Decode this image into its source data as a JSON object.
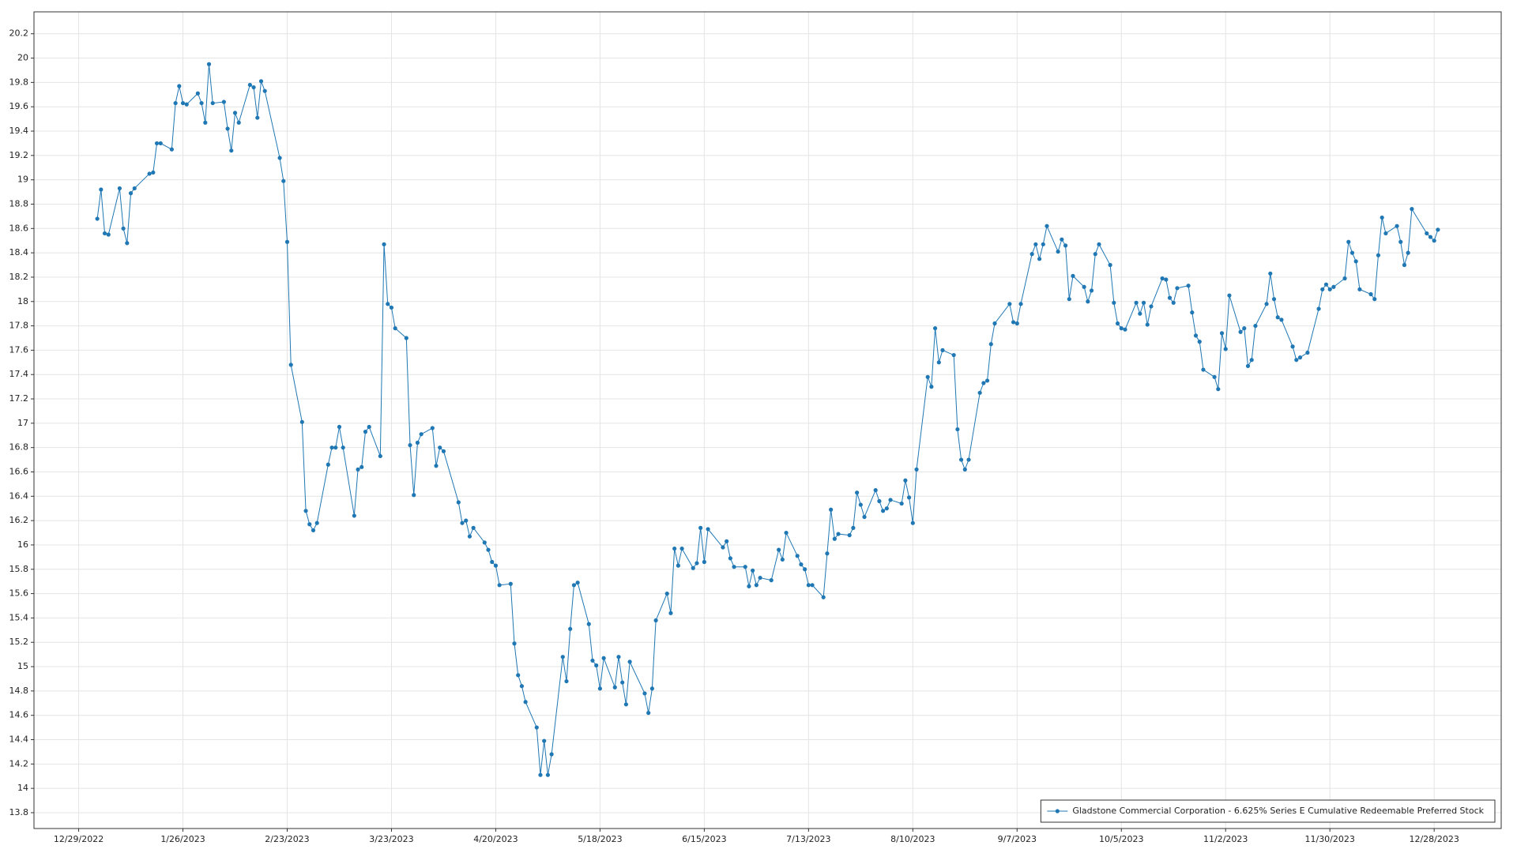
{
  "chart_data": {
    "type": "line",
    "x": [
      "1/3/2023",
      "1/4/2023",
      "1/5/2023",
      "1/6/2023",
      "1/9/2023",
      "1/10/2023",
      "1/11/2023",
      "1/12/2023",
      "1/13/2023",
      "1/17/2023",
      "1/18/2023",
      "1/19/2023",
      "1/20/2023",
      "1/23/2023",
      "1/24/2023",
      "1/25/2023",
      "1/26/2023",
      "1/27/2023",
      "1/30/2023",
      "1/31/2023",
      "2/1/2023",
      "2/2/2023",
      "2/3/2023",
      "2/6/2023",
      "2/7/2023",
      "2/8/2023",
      "2/9/2023",
      "2/10/2023",
      "2/13/2023",
      "2/14/2023",
      "2/15/2023",
      "2/16/2023",
      "2/17/2023",
      "2/21/2023",
      "2/22/2023",
      "2/23/2023",
      "2/24/2023",
      "2/27/2023",
      "2/28/2023",
      "3/1/2023",
      "3/2/2023",
      "3/3/2023",
      "3/6/2023",
      "3/7/2023",
      "3/8/2023",
      "3/9/2023",
      "3/10/2023",
      "3/13/2023",
      "3/14/2023",
      "3/15/2023",
      "3/16/2023",
      "3/17/2023",
      "3/20/2023",
      "3/21/2023",
      "3/22/2023",
      "3/23/2023",
      "3/24/2023",
      "3/27/2023",
      "3/28/2023",
      "3/29/2023",
      "3/30/2023",
      "3/31/2023",
      "4/3/2023",
      "4/4/2023",
      "4/5/2023",
      "4/6/2023",
      "4/10/2023",
      "4/11/2023",
      "4/12/2023",
      "4/13/2023",
      "4/14/2023",
      "4/17/2023",
      "4/18/2023",
      "4/19/2023",
      "4/20/2023",
      "4/21/2023",
      "4/24/2023",
      "4/25/2023",
      "4/26/2023",
      "4/27/2023",
      "4/28/2023",
      "5/1/2023",
      "5/2/2023",
      "5/3/2023",
      "5/4/2023",
      "5/5/2023",
      "5/8/2023",
      "5/9/2023",
      "5/10/2023",
      "5/11/2023",
      "5/12/2023",
      "5/15/2023",
      "5/16/2023",
      "5/17/2023",
      "5/18/2023",
      "5/19/2023",
      "5/22/2023",
      "5/23/2023",
      "5/24/2023",
      "5/25/2023",
      "5/26/2023",
      "5/30/2023",
      "5/31/2023",
      "6/1/2023",
      "6/2/2023",
      "6/5/2023",
      "6/6/2023",
      "6/7/2023",
      "6/8/2023",
      "6/9/2023",
      "6/12/2023",
      "6/13/2023",
      "6/14/2023",
      "6/15/2023",
      "6/16/2023",
      "6/20/2023",
      "6/21/2023",
      "6/22/2023",
      "6/23/2023",
      "6/26/2023",
      "6/27/2023",
      "6/28/2023",
      "6/29/2023",
      "6/30/2023",
      "7/3/2023",
      "7/5/2023",
      "7/6/2023",
      "7/7/2023",
      "7/10/2023",
      "7/11/2023",
      "7/12/2023",
      "7/13/2023",
      "7/14/2023",
      "7/17/2023",
      "7/18/2023",
      "7/19/2023",
      "7/20/2023",
      "7/21/2023",
      "7/24/2023",
      "7/25/2023",
      "7/26/2023",
      "7/27/2023",
      "7/28/2023",
      "7/31/2023",
      "8/1/2023",
      "8/2/2023",
      "8/3/2023",
      "8/4/2023",
      "8/7/2023",
      "8/8/2023",
      "8/9/2023",
      "8/10/2023",
      "8/11/2023",
      "8/14/2023",
      "8/15/2023",
      "8/16/2023",
      "8/17/2023",
      "8/18/2023",
      "8/21/2023",
      "8/22/2023",
      "8/23/2023",
      "8/24/2023",
      "8/25/2023",
      "8/28/2023",
      "8/29/2023",
      "8/30/2023",
      "8/31/2023",
      "9/1/2023",
      "9/5/2023",
      "9/6/2023",
      "9/7/2023",
      "9/8/2023",
      "9/11/2023",
      "9/12/2023",
      "9/13/2023",
      "9/14/2023",
      "9/15/2023",
      "9/18/2023",
      "9/19/2023",
      "9/20/2023",
      "9/21/2023",
      "9/22/2023",
      "9/25/2023",
      "9/26/2023",
      "9/27/2023",
      "9/28/2023",
      "9/29/2023",
      "10/2/2023",
      "10/3/2023",
      "10/4/2023",
      "10/5/2023",
      "10/6/2023",
      "10/9/2023",
      "10/10/2023",
      "10/11/2023",
      "10/12/2023",
      "10/13/2023",
      "10/16/2023",
      "10/17/2023",
      "10/18/2023",
      "10/19/2023",
      "10/20/2023",
      "10/23/2023",
      "10/24/2023",
      "10/25/2023",
      "10/26/2023",
      "10/27/2023",
      "10/30/2023",
      "10/31/2023",
      "11/1/2023",
      "11/2/2023",
      "11/3/2023",
      "11/6/2023",
      "11/7/2023",
      "11/8/2023",
      "11/9/2023",
      "11/10/2023",
      "11/13/2023",
      "11/14/2023",
      "11/15/2023",
      "11/16/2023",
      "11/17/2023",
      "11/20/2023",
      "11/21/2023",
      "11/22/2023",
      "11/24/2023",
      "11/27/2023",
      "11/28/2023",
      "11/29/2023",
      "11/30/2023",
      "12/1/2023",
      "12/4/2023",
      "12/5/2023",
      "12/6/2023",
      "12/7/2023",
      "12/8/2023",
      "12/11/2023",
      "12/12/2023",
      "12/13/2023",
      "12/14/2023",
      "12/15/2023",
      "12/18/2023",
      "12/19/2023",
      "12/20/2023",
      "12/21/2023",
      "12/22/2023",
      "12/26/2023",
      "12/27/2023",
      "12/28/2023",
      "12/29/2023"
    ],
    "series": [
      {
        "name": "Gladstone Commercial Corporation - 6.625% Series E Cumulative Redeemable Preferred Stock",
        "color": "#1f77b4",
        "values": [
          18.68,
          18.92,
          18.56,
          18.55,
          18.93,
          18.6,
          18.48,
          18.89,
          18.93,
          19.05,
          19.06,
          19.3,
          19.3,
          19.25,
          19.63,
          19.77,
          19.63,
          19.62,
          19.71,
          19.63,
          19.47,
          19.95,
          19.63,
          19.64,
          19.42,
          19.24,
          19.55,
          19.47,
          19.78,
          19.76,
          19.51,
          19.81,
          19.73,
          19.18,
          18.99,
          18.49,
          17.48,
          17.01,
          16.28,
          16.17,
          16.12,
          16.18,
          16.66,
          16.8,
          16.8,
          16.97,
          16.8,
          16.24,
          16.62,
          16.64,
          16.93,
          16.97,
          16.73,
          18.47,
          17.98,
          17.95,
          17.78,
          17.7,
          16.82,
          16.41,
          16.84,
          16.91,
          16.96,
          16.65,
          16.8,
          16.77,
          16.35,
          16.18,
          16.2,
          16.07,
          16.14,
          16.02,
          15.96,
          15.86,
          15.83,
          15.67,
          15.68,
          15.19,
          14.93,
          14.84,
          14.71,
          14.5,
          14.11,
          14.39,
          14.11,
          14.28,
          15.08,
          14.88,
          15.31,
          15.67,
          15.69,
          15.35,
          15.05,
          15.01,
          14.82,
          15.07,
          14.83,
          15.08,
          14.87,
          14.69,
          15.04,
          14.78,
          14.62,
          14.82,
          15.38,
          15.6,
          15.44,
          15.97,
          15.83,
          15.97,
          15.81,
          15.85,
          16.14,
          15.86,
          16.13,
          15.98,
          16.03,
          15.89,
          15.82,
          15.82,
          15.66,
          15.79,
          15.67,
          15.73,
          15.71,
          15.96,
          15.88,
          16.1,
          15.91,
          15.84,
          15.8,
          15.67,
          15.67,
          15.57,
          15.93,
          16.29,
          16.05,
          16.09,
          16.08,
          16.14,
          16.43,
          16.33,
          16.23,
          16.45,
          16.36,
          16.28,
          16.3,
          16.37,
          16.34,
          16.53,
          16.39,
          16.18,
          16.62,
          17.38,
          17.3,
          17.78,
          17.5,
          17.6,
          17.56,
          16.95,
          16.7,
          16.62,
          16.7,
          17.25,
          17.33,
          17.35,
          17.65,
          17.82,
          17.98,
          17.83,
          17.82,
          17.98,
          18.39,
          18.47,
          18.35,
          18.47,
          18.62,
          18.41,
          18.51,
          18.46,
          18.02,
          18.21,
          18.12,
          18.0,
          18.09,
          18.39,
          18.47,
          18.3,
          17.99,
          17.82,
          17.78,
          17.77,
          17.99,
          17.9,
          17.99,
          17.81,
          17.96,
          18.19,
          18.18,
          18.03,
          17.99,
          18.11,
          18.13,
          17.91,
          17.72,
          17.67,
          17.44,
          17.38,
          17.28,
          17.74,
          17.61,
          18.05,
          17.75,
          17.78,
          17.47,
          17.52,
          17.8,
          17.98,
          18.23,
          18.02,
          17.87,
          17.85,
          17.63,
          17.52,
          17.54,
          17.58,
          17.94,
          18.1,
          18.14,
          18.1,
          18.12,
          18.19,
          18.49,
          18.4,
          18.33,
          18.1,
          18.06,
          18.02,
          18.38,
          18.69,
          18.56,
          18.62,
          18.49,
          18.3,
          18.4,
          18.76,
          18.56,
          18.53,
          18.5,
          18.59
        ]
      }
    ],
    "xlim": [
      "12/17/2022",
      "1/15/2024"
    ],
    "xticks": [
      "12/29/2022",
      "1/26/2023",
      "2/23/2023",
      "3/23/2023",
      "4/20/2023",
      "5/18/2023",
      "6/15/2023",
      "7/13/2023",
      "8/10/2023",
      "9/7/2023",
      "10/5/2023",
      "11/2/2023",
      "11/30/2023",
      "12/28/2023"
    ],
    "ylim": [
      13.67,
      20.38
    ],
    "yticks": [
      13.8,
      14,
      14.2,
      14.4,
      14.6,
      14.8,
      15,
      15.2,
      15.4,
      15.6,
      15.8,
      16,
      16.2,
      16.4,
      16.6,
      16.8,
      17,
      17.2,
      17.4,
      17.6,
      17.8,
      18,
      18.2,
      18.4,
      18.6,
      18.8,
      19,
      19.2,
      19.4,
      19.6,
      19.8,
      20,
      20.2
    ],
    "grid": true,
    "legend": "lower right"
  }
}
